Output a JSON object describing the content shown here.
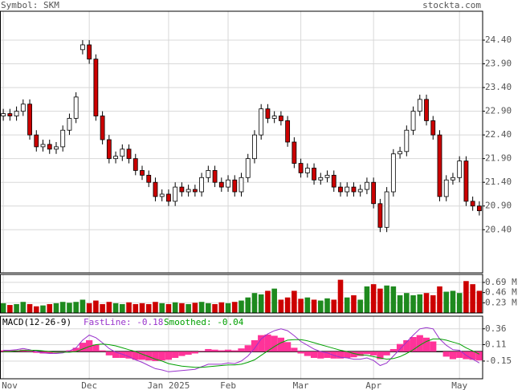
{
  "chart_data": {
    "type": "candlestick",
    "symbol_label": "Symbol: SKM",
    "site": "stockta.com",
    "grid": true,
    "xlim": [
      -0.5,
      72.5
    ],
    "xticks": [
      {
        "value": 0,
        "label": "Nov"
      },
      {
        "value": 13,
        "label": "Dec"
      },
      {
        "value": 25,
        "label": "Jan 2025"
      },
      {
        "value": 34,
        "label": "Feb"
      },
      {
        "value": 45,
        "label": "Mar"
      },
      {
        "value": 56,
        "label": "Apr"
      },
      {
        "value": 69,
        "label": "May"
      }
    ],
    "ylim": [
      19.49,
      25.01
    ],
    "yticks": [
      {
        "value": 24.4,
        "label": "24.40"
      },
      {
        "value": 23.9,
        "label": "23.90"
      },
      {
        "value": 23.4,
        "label": "23.40"
      },
      {
        "value": 22.9,
        "label": "22.90"
      },
      {
        "value": 22.4,
        "label": "22.40"
      },
      {
        "value": 21.9,
        "label": "21.90"
      },
      {
        "value": 21.4,
        "label": "21.40"
      },
      {
        "value": 20.9,
        "label": "20.90"
      },
      {
        "value": 20.4,
        "label": "20.40"
      }
    ],
    "up_color": "#ffffff",
    "down_color": "#cc0000",
    "open": [
      22.8,
      22.85,
      22.8,
      22.9,
      23.05,
      22.4,
      22.15,
      22.2,
      22.1,
      22.15,
      22.5,
      22.75,
      24.2,
      24.3,
      24.0,
      22.8,
      22.3,
      21.9,
      21.95,
      22.1,
      21.9,
      21.65,
      21.55,
      21.4,
      21.1,
      21.15,
      21.0,
      21.3,
      21.2,
      21.25,
      21.2,
      21.5,
      21.65,
      21.4,
      21.3,
      21.45,
      21.2,
      21.5,
      21.9,
      22.4,
      22.95,
      22.75,
      22.8,
      22.7,
      22.25,
      21.8,
      21.6,
      21.7,
      21.45,
      21.5,
      21.55,
      21.3,
      21.2,
      21.3,
      21.2,
      21.25,
      21.4,
      20.95,
      20.45,
      21.2,
      22.0,
      22.05,
      22.5,
      22.9,
      23.15,
      22.7,
      22.4,
      21.1,
      21.45,
      21.5,
      21.85,
      21.0,
      20.9
    ],
    "high": [
      22.95,
      22.95,
      23.0,
      23.15,
      23.15,
      22.5,
      22.3,
      22.3,
      22.25,
      22.6,
      22.85,
      23.3,
      24.4,
      24.4,
      24.1,
      22.9,
      22.4,
      22.05,
      22.2,
      22.2,
      22.0,
      21.75,
      21.65,
      21.5,
      21.25,
      21.25,
      21.4,
      21.4,
      21.35,
      21.35,
      21.6,
      21.75,
      21.75,
      21.5,
      21.55,
      21.55,
      21.6,
      22.0,
      22.5,
      23.05,
      23.05,
      22.9,
      22.9,
      22.8,
      22.35,
      21.9,
      21.8,
      21.8,
      21.6,
      21.65,
      21.65,
      21.4,
      21.4,
      21.4,
      21.35,
      21.5,
      21.5,
      21.05,
      21.3,
      22.1,
      22.15,
      22.6,
      23.0,
      23.25,
      23.25,
      22.8,
      22.5,
      21.55,
      21.6,
      21.95,
      21.95,
      21.1,
      21.0
    ],
    "low": [
      22.7,
      22.7,
      22.7,
      22.8,
      22.3,
      22.05,
      22.05,
      22.0,
      22.0,
      22.05,
      22.4,
      22.65,
      24.1,
      23.9,
      22.7,
      22.2,
      21.8,
      21.8,
      21.85,
      21.8,
      21.55,
      21.45,
      21.3,
      21.0,
      21.0,
      20.9,
      20.9,
      21.1,
      21.1,
      21.1,
      21.1,
      21.4,
      21.3,
      21.2,
      21.2,
      21.1,
      21.1,
      21.4,
      21.8,
      22.3,
      22.65,
      22.65,
      22.6,
      22.15,
      21.7,
      21.5,
      21.5,
      21.35,
      21.35,
      21.4,
      21.2,
      21.1,
      21.1,
      21.1,
      21.1,
      21.15,
      20.85,
      20.35,
      20.35,
      21.1,
      21.9,
      21.95,
      22.4,
      22.8,
      22.6,
      22.3,
      21.0,
      21.0,
      21.35,
      21.4,
      20.9,
      20.8,
      20.7
    ],
    "close": [
      22.85,
      22.8,
      22.9,
      23.05,
      22.4,
      22.15,
      22.2,
      22.1,
      22.15,
      22.5,
      22.75,
      23.2,
      24.3,
      24.0,
      22.8,
      22.3,
      21.9,
      21.95,
      22.1,
      21.9,
      21.65,
      21.55,
      21.4,
      21.1,
      21.15,
      21.0,
      21.3,
      21.2,
      21.25,
      21.2,
      21.5,
      21.65,
      21.4,
      21.3,
      21.45,
      21.2,
      21.5,
      21.9,
      22.4,
      22.95,
      22.75,
      22.8,
      22.7,
      22.25,
      21.8,
      21.6,
      21.7,
      21.45,
      21.5,
      21.55,
      21.3,
      21.2,
      21.3,
      21.2,
      21.25,
      21.4,
      20.95,
      20.45,
      21.2,
      22.0,
      22.05,
      22.5,
      22.9,
      23.15,
      22.7,
      22.4,
      21.1,
      21.45,
      21.5,
      21.85,
      21.0,
      20.9,
      20.8
    ],
    "volume": {
      "up_color": "#1e8a1e",
      "down_color": "#cc0000",
      "ylim": [
        0,
        0.87
      ],
      "yticks": [
        {
          "value": 0.69,
          "label": "0.69 M"
        },
        {
          "value": 0.46,
          "label": "0.46 M"
        },
        {
          "value": 0.23,
          "label": "0.23 M"
        }
      ],
      "values": [
        0.22,
        0.18,
        0.2,
        0.25,
        0.2,
        0.15,
        0.17,
        0.2,
        0.22,
        0.25,
        0.23,
        0.25,
        0.3,
        0.22,
        0.28,
        0.2,
        0.25,
        0.22,
        0.2,
        0.24,
        0.2,
        0.22,
        0.2,
        0.25,
        0.22,
        0.2,
        0.24,
        0.22,
        0.2,
        0.23,
        0.25,
        0.22,
        0.2,
        0.24,
        0.22,
        0.25,
        0.28,
        0.35,
        0.45,
        0.42,
        0.5,
        0.55,
        0.3,
        0.35,
        0.5,
        0.32,
        0.35,
        0.3,
        0.28,
        0.33,
        0.3,
        0.75,
        0.35,
        0.4,
        0.3,
        0.6,
        0.65,
        0.55,
        0.62,
        0.6,
        0.4,
        0.45,
        0.4,
        0.42,
        0.45,
        0.4,
        0.6,
        0.48,
        0.5,
        0.45,
        0.72,
        0.65,
        0.5
      ]
    },
    "macd": {
      "title": "MACD(12-26-9)",
      "fast_label": "FastLine: -0.18",
      "smoothed_label": "Smoothed: -0.04",
      "ylim": [
        -0.43,
        0.56
      ],
      "yticks": [
        0.36,
        0.11,
        -0.15
      ],
      "series": [
        {
          "name": "FastLine",
          "color": "#9933cc",
          "values": [
            0.02,
            0.02,
            0.03,
            0.05,
            0.03,
            0.0,
            -0.02,
            -0.03,
            -0.03,
            -0.02,
            0.01,
            0.06,
            0.18,
            0.26,
            0.22,
            0.14,
            0.05,
            -0.01,
            -0.04,
            -0.08,
            -0.13,
            -0.17,
            -0.22,
            -0.27,
            -0.29,
            -0.32,
            -0.31,
            -0.3,
            -0.29,
            -0.28,
            -0.24,
            -0.2,
            -0.2,
            -0.2,
            -0.18,
            -0.19,
            -0.15,
            -0.07,
            0.05,
            0.2,
            0.28,
            0.33,
            0.36,
            0.33,
            0.25,
            0.16,
            0.1,
            0.04,
            0.0,
            -0.02,
            -0.06,
            -0.09,
            -0.1,
            -0.12,
            -0.12,
            -0.1,
            -0.14,
            -0.22,
            -0.18,
            -0.07,
            0.04,
            0.15,
            0.26,
            0.36,
            0.38,
            0.36,
            0.2,
            0.1,
            0.03,
            0.02,
            -0.06,
            -0.12,
            -0.18
          ]
        },
        {
          "name": "Smoothed",
          "color": "#00a000",
          "values": [
            0.0,
            0.0,
            0.01,
            0.02,
            0.02,
            0.02,
            0.01,
            0.0,
            -0.01,
            -0.01,
            -0.01,
            0.0,
            0.04,
            0.08,
            0.11,
            0.12,
            0.11,
            0.09,
            0.06,
            0.03,
            0.0,
            -0.04,
            -0.08,
            -0.12,
            -0.15,
            -0.19,
            -0.21,
            -0.23,
            -0.24,
            -0.25,
            -0.25,
            -0.24,
            -0.23,
            -0.22,
            -0.21,
            -0.21,
            -0.2,
            -0.17,
            -0.13,
            -0.06,
            0.01,
            0.08,
            0.14,
            0.18,
            0.19,
            0.19,
            0.17,
            0.14,
            0.11,
            0.08,
            0.05,
            0.02,
            0.0,
            -0.03,
            -0.05,
            -0.06,
            -0.08,
            -0.1,
            -0.12,
            -0.11,
            -0.08,
            -0.03,
            0.03,
            0.1,
            0.16,
            0.2,
            0.2,
            0.18,
            0.15,
            0.12,
            0.06,
            0.01,
            -0.04
          ]
        }
      ],
      "histogram": {
        "color": "#ff3399",
        "values": [
          0.02,
          0.02,
          0.02,
          0.03,
          0.01,
          -0.02,
          -0.03,
          -0.03,
          -0.02,
          -0.01,
          0.02,
          0.06,
          0.14,
          0.18,
          0.11,
          0.02,
          -0.06,
          -0.1,
          -0.1,
          -0.11,
          -0.13,
          -0.13,
          -0.14,
          -0.15,
          -0.14,
          -0.13,
          -0.1,
          -0.07,
          -0.05,
          -0.03,
          0.01,
          0.04,
          0.03,
          0.02,
          0.03,
          0.02,
          0.05,
          0.1,
          0.18,
          0.26,
          0.27,
          0.25,
          0.22,
          0.15,
          0.06,
          -0.03,
          -0.07,
          -0.1,
          -0.11,
          -0.1,
          -0.11,
          -0.11,
          -0.1,
          -0.09,
          -0.07,
          -0.04,
          -0.06,
          -0.12,
          -0.06,
          0.04,
          0.12,
          0.18,
          0.23,
          0.26,
          0.22,
          0.16,
          0.0,
          -0.08,
          -0.12,
          -0.1,
          -0.12,
          -0.13,
          -0.14
        ]
      }
    }
  }
}
